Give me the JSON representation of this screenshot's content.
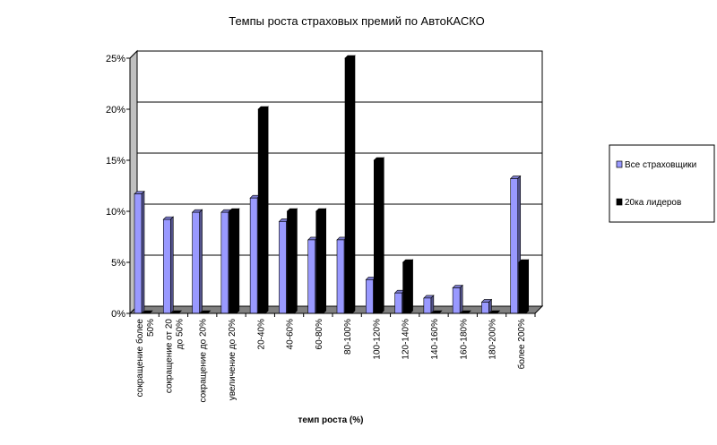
{
  "chart_data": {
    "type": "bar",
    "title": "Темпы роста страховых премий по АвтоКАСКО",
    "xlabel": "темп роста (%)",
    "ylabel": "",
    "ylim": [
      0,
      25
    ],
    "y_ticks": [
      "0%",
      "5%",
      "10%",
      "15%",
      "20%",
      "25%"
    ],
    "y_tick_values": [
      0,
      5,
      10,
      15,
      20,
      25
    ],
    "grid": true,
    "legend_position": "right",
    "categories": [
      [
        "сокращение более",
        "50%"
      ],
      [
        "сокращение от 20",
        "до 50%"
      ],
      [
        "сокращение до 20%"
      ],
      [
        "увеличение до 20%"
      ],
      [
        "20-40%"
      ],
      [
        "40-60%"
      ],
      [
        "60-80%"
      ],
      [
        "80-100%"
      ],
      [
        "100-120%"
      ],
      [
        "120-140%"
      ],
      [
        "140-160%"
      ],
      [
        "160-180%"
      ],
      [
        "180-200%"
      ],
      [
        "более 200%"
      ]
    ],
    "series": [
      {
        "name": "Все страховщики",
        "color": "#9999ff",
        "values": [
          11.7,
          9.2,
          9.9,
          9.9,
          11.3,
          9.0,
          7.2,
          7.2,
          3.3,
          2.0,
          1.5,
          2.5,
          1.1,
          13.2
        ]
      },
      {
        "name": "20ка лидеров",
        "color": "#000000",
        "values": [
          0,
          0,
          0,
          10,
          20,
          10,
          10,
          25,
          15,
          5,
          0,
          0,
          0,
          5
        ]
      }
    ]
  }
}
